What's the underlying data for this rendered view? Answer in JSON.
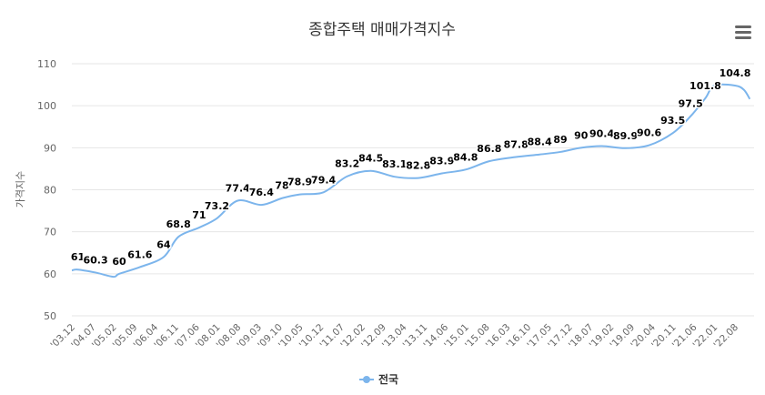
{
  "chart_data": {
    "type": "line",
    "title": "종합주택 매매가격지수",
    "ylabel": "가격지수",
    "xlabel": "",
    "ylim": [
      50,
      110
    ],
    "yticks": [
      50,
      60,
      70,
      80,
      90,
      100,
      110
    ],
    "grid": true,
    "legend_placement": "bottom",
    "x_ticks": [
      "'03.12",
      "'04.07",
      "'05.02",
      "'05.09",
      "'06.04",
      "'06.11",
      "'07.06",
      "'08.01",
      "'08.08",
      "'09.03",
      "'09.10",
      "'10.05",
      "'10.12",
      "'11.07",
      "'12.02",
      "'12.09",
      "'13.04",
      "'13.11",
      "'14.06",
      "'15.01",
      "'15.08",
      "'16.03",
      "'16.10",
      "'17.05",
      "'17.12",
      "'18.07",
      "'19.02",
      "'19.09",
      "'20.04",
      "'20.11",
      "'21.06",
      "'22.01",
      "'22.08"
    ],
    "series": [
      {
        "name": "전국",
        "color": "#7cb5ec",
        "points": [
          {
            "x": "2003.12",
            "y": 60.8
          },
          {
            "x": "2004.02",
            "y": 61,
            "label": "61"
          },
          {
            "x": "2004.08",
            "y": 60.3,
            "label": "60.3"
          },
          {
            "x": "2005.02",
            "y": 59.3
          },
          {
            "x": "2005.04",
            "y": 60,
            "label": "60"
          },
          {
            "x": "2005.11",
            "y": 61.6,
            "label": "61.6"
          },
          {
            "x": "2006.07",
            "y": 64,
            "label": "64"
          },
          {
            "x": "2006.12",
            "y": 68.8,
            "label": "68.8"
          },
          {
            "x": "2007.07",
            "y": 71,
            "label": "71"
          },
          {
            "x": "2008.01",
            "y": 73.2,
            "label": "73.2"
          },
          {
            "x": "2008.08",
            "y": 77.4,
            "label": "77.4"
          },
          {
            "x": "2009.04",
            "y": 76.4,
            "label": "76.4"
          },
          {
            "x": "2009.11",
            "y": 78,
            "label": "78"
          },
          {
            "x": "2010.05",
            "y": 78.9,
            "label": "78.9"
          },
          {
            "x": "2011.01",
            "y": 79.4,
            "label": "79.4"
          },
          {
            "x": "2011.09",
            "y": 83.2,
            "label": "83.2"
          },
          {
            "x": "2012.05",
            "y": 84.5,
            "label": "84.5"
          },
          {
            "x": "2013.01",
            "y": 83.1,
            "label": "83.1"
          },
          {
            "x": "2013.09",
            "y": 82.8,
            "label": "82.8"
          },
          {
            "x": "2014.05",
            "y": 83.9,
            "label": "83.9"
          },
          {
            "x": "2015.01",
            "y": 84.8,
            "label": "84.8"
          },
          {
            "x": "2015.09",
            "y": 86.8,
            "label": "86.8"
          },
          {
            "x": "2016.06",
            "y": 87.8,
            "label": "87.8"
          },
          {
            "x": "2017.02",
            "y": 88.4,
            "label": "88.4"
          },
          {
            "x": "2017.09",
            "y": 89,
            "label": "89"
          },
          {
            "x": "2018.04",
            "y": 90,
            "label": "90"
          },
          {
            "x": "2018.11",
            "y": 90.4,
            "label": "90.4"
          },
          {
            "x": "2019.07",
            "y": 89.9,
            "label": "89.9"
          },
          {
            "x": "2020.03",
            "y": 90.6,
            "label": "90.6"
          },
          {
            "x": "2020.11",
            "y": 93.5,
            "label": "93.5"
          },
          {
            "x": "2021.05",
            "y": 97.5,
            "label": "97.5"
          },
          {
            "x": "2021.10",
            "y": 101.8,
            "label": "101.8"
          },
          {
            "x": "2022.01",
            "y": 104.8
          },
          {
            "x": "2022.08",
            "y": 104.8,
            "label": "104.8"
          },
          {
            "x": "2022.11",
            "y": 103.8
          },
          {
            "x": "2023.01",
            "y": 101.6
          }
        ]
      }
    ]
  },
  "ui": {
    "menu_icon": "hamburger-menu-icon"
  }
}
